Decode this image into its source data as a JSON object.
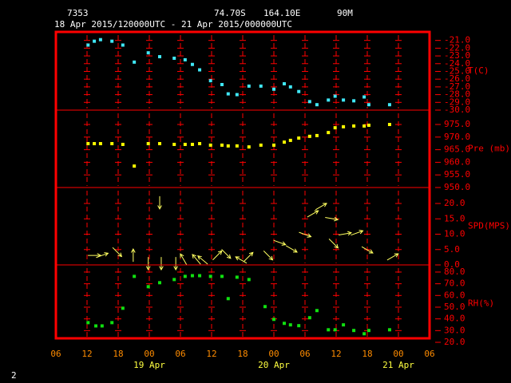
{
  "header": {
    "station": "7353",
    "latitude": "74.70S",
    "longitude": "164.10E",
    "elevation": "90M",
    "period": "18 Apr 2015/120000UTC - 21 Apr 2015/000000UTC"
  },
  "footer": "2",
  "chart_data": [
    {
      "type": "scatter",
      "label": "T(C)",
      "color": "#40e8f8",
      "xlim": [
        6,
        78
      ],
      "ylim": [
        -30,
        -19.9
      ],
      "yticks": [
        {
          "value": -21,
          "label": "-21.0"
        },
        {
          "value": -22,
          "label": "-22.0"
        },
        {
          "value": -23,
          "label": "-23.0"
        },
        {
          "value": -24,
          "label": "-24.0"
        },
        {
          "value": -25,
          "label": "-25.0"
        },
        {
          "value": -26,
          "label": "-26.0"
        },
        {
          "value": -27,
          "label": "-27.0"
        },
        {
          "value": -28,
          "label": "-28.0"
        },
        {
          "value": -29,
          "label": "-29.0"
        },
        {
          "value": -30,
          "label": "-30.0"
        }
      ],
      "x": [
        12.2,
        13.4,
        14.6,
        16.8,
        18.9,
        21.1,
        23.8,
        26.0,
        28.8,
        30.9,
        32.3,
        33.7,
        35.8,
        38.0,
        39.2,
        40.9,
        43.2,
        45.5,
        48.0,
        50.0,
        51.2,
        52.8,
        54.9,
        56.3,
        58.5,
        59.8,
        61.4,
        63.4,
        65.4,
        66.3,
        70.3
      ],
      "values": [
        -21.6,
        -21.1,
        -20.9,
        -21.1,
        -21.6,
        -23.8,
        -22.6,
        -23.1,
        -23.3,
        -23.5,
        -24.1,
        -24.8,
        -26.2,
        -26.7,
        -27.9,
        -28.0,
        -26.9,
        -26.9,
        -27.3,
        -26.6,
        -27.0,
        -27.6,
        -28.9,
        -29.3,
        -28.7,
        -28.2,
        -28.7,
        -28.8,
        -28.3,
        -29.3,
        -29.3
      ]
    },
    {
      "type": "scatter",
      "label": "Pre (mb)",
      "color": "#ffff00",
      "xlim": [
        6,
        78
      ],
      "ylim": [
        950,
        980.7
      ],
      "yticks": [
        {
          "value": 950,
          "label": "950.0"
        },
        {
          "value": 955,
          "label": "955.0"
        },
        {
          "value": 960,
          "label": "960.0"
        },
        {
          "value": 965,
          "label": "965.0"
        },
        {
          "value": 970,
          "label": "970.0"
        },
        {
          "value": 975,
          "label": "975.0"
        }
      ],
      "x": [
        12.2,
        13.4,
        14.6,
        16.8,
        18.9,
        21.1,
        23.8,
        26.0,
        28.8,
        30.9,
        32.3,
        33.7,
        35.8,
        38.0,
        39.2,
        40.9,
        43.2,
        45.5,
        48.0,
        50.0,
        51.2,
        52.8,
        54.9,
        56.3,
        58.5,
        59.8,
        61.4,
        63.4,
        65.4,
        66.3,
        70.3
      ],
      "values": [
        967.4,
        967.4,
        967.4,
        967.4,
        967.1,
        958.5,
        967.4,
        967.4,
        967.1,
        967.1,
        967.1,
        967.4,
        966.8,
        966.8,
        966.5,
        966.5,
        966.1,
        966.8,
        966.8,
        968.0,
        968.7,
        969.6,
        970.3,
        970.6,
        971.8,
        973.7,
        974.1,
        974.4,
        974.4,
        974.7,
        975.0
      ]
    },
    {
      "type": "wind",
      "label": "SPD(MPS)",
      "color": "#ffff60",
      "xlim": [
        6,
        78
      ],
      "ylim": [
        0,
        25.2
      ],
      "yticks": [
        {
          "value": 0,
          "label": "0.0"
        },
        {
          "value": 5,
          "label": "5.0"
        },
        {
          "value": 10,
          "label": "10.0"
        },
        {
          "value": 15,
          "label": "15.0"
        },
        {
          "value": 20,
          "label": "20.0"
        }
      ],
      "x": [
        13.4,
        14.9,
        17.8,
        20.9,
        23.8,
        26.0,
        26.3,
        29.1,
        30.6,
        33.1,
        34.3,
        37.1,
        38.8,
        41.7,
        43.1,
        46.9,
        49.1,
        51.4,
        54.0,
        55.5,
        57.1,
        59.1,
        59.5,
        61.7,
        64.0,
        66.0,
        70.9
      ],
      "values": [
        3.1,
        3.1,
        4.2,
        3.1,
        0.5,
        20.3,
        0.5,
        0.5,
        1.8,
        1.8,
        1.6,
        3.1,
        3.6,
        1.6,
        2.6,
        3.1,
        7.3,
        5.2,
        9.9,
        16.6,
        19.0,
        15.1,
        7.0,
        10.1,
        10.4,
        4.9,
        2.6
      ],
      "directions": [
        0,
        -20,
        45,
        -90,
        90,
        90,
        90,
        90,
        -120,
        -130,
        -140,
        -45,
        45,
        -150,
        -45,
        45,
        20,
        30,
        20,
        -30,
        -30,
        10,
        45,
        -10,
        -20,
        30,
        -30
      ]
    },
    {
      "type": "scatter",
      "label": "RH(%)",
      "color": "#10e010",
      "xlim": [
        6,
        78
      ],
      "ylim": [
        20,
        86.1
      ],
      "yticks": [
        {
          "value": 20,
          "label": "20.0"
        },
        {
          "value": 30,
          "label": "30.0"
        },
        {
          "value": 40,
          "label": "40.0"
        },
        {
          "value": 50,
          "label": "50.0"
        },
        {
          "value": 60,
          "label": "60.0"
        },
        {
          "value": 70,
          "label": "70.0"
        },
        {
          "value": 80,
          "label": "80.0"
        }
      ],
      "x": [
        12.2,
        13.7,
        14.9,
        16.8,
        18.9,
        21.1,
        23.8,
        26.0,
        28.8,
        30.9,
        32.3,
        33.7,
        35.8,
        38.0,
        39.2,
        40.9,
        43.2,
        46.3,
        48.0,
        50.0,
        51.2,
        52.8,
        54.9,
        56.3,
        58.5,
        59.8,
        61.4,
        63.4,
        65.4,
        66.3,
        70.3
      ],
      "values": [
        36.8,
        34.0,
        34.0,
        36.8,
        49.1,
        76.3,
        67.5,
        70.9,
        73.6,
        76.3,
        76.9,
        76.9,
        76.3,
        76.3,
        57.3,
        75.6,
        73.6,
        50.5,
        39.6,
        36.2,
        34.9,
        34.2,
        41.0,
        47.1,
        30.7,
        30.7,
        34.9,
        30.1,
        27.3,
        30.1,
        30.7
      ],
      "xticks": [
        {
          "value": 6,
          "label": "06"
        },
        {
          "value": 12,
          "label": "12"
        },
        {
          "value": 18,
          "label": "18"
        },
        {
          "value": 24,
          "label": "00"
        },
        {
          "value": 30,
          "label": "06"
        },
        {
          "value": 36,
          "label": "12"
        },
        {
          "value": 42,
          "label": "18"
        },
        {
          "value": 48,
          "label": "00"
        },
        {
          "value": 54,
          "label": "06"
        },
        {
          "value": 60,
          "label": "12"
        },
        {
          "value": 66,
          "label": "18"
        },
        {
          "value": 72,
          "label": "00"
        },
        {
          "value": 78,
          "label": "06"
        }
      ],
      "date_labels": [
        {
          "value": 24,
          "label": "19 Apr"
        },
        {
          "value": 48,
          "label": "20 Apr"
        },
        {
          "value": 72,
          "label": "21 Apr"
        }
      ]
    }
  ]
}
